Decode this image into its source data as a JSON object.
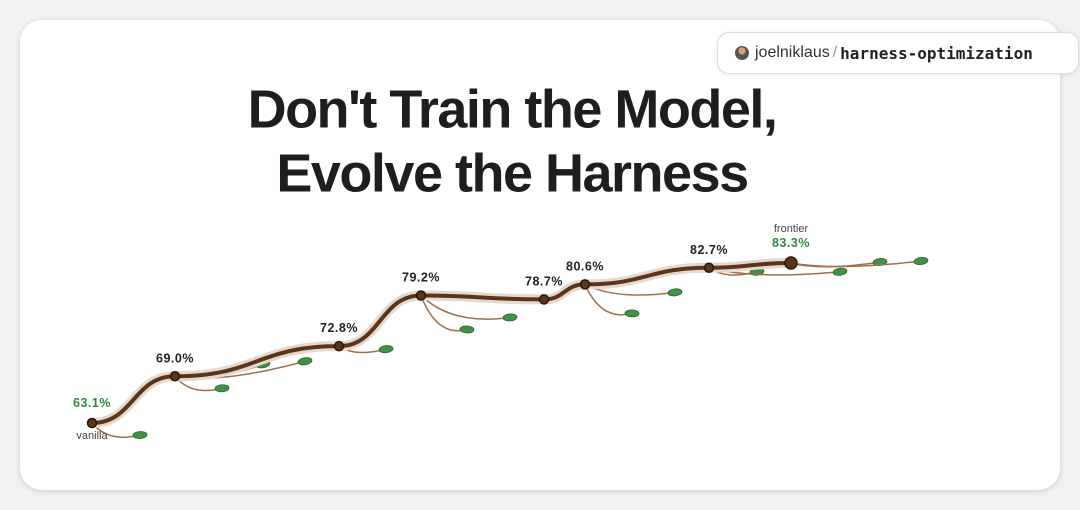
{
  "badge": {
    "user": "joelniklaus",
    "separator": "/",
    "repo": "harness-optimization"
  },
  "chart_data": {
    "type": "line",
    "title": [
      "Don't Train the Model,",
      "Evolve the Harness"
    ],
    "categories": [
      null,
      null,
      null,
      null,
      null,
      null,
      null,
      null
    ],
    "values": [
      63.1,
      69.0,
      72.8,
      79.2,
      78.7,
      80.6,
      82.7,
      83.3
    ],
    "value_labels": [
      "63.1%",
      "69.0%",
      "72.8%",
      "79.2%",
      "78.7%",
      "80.6%",
      "82.7%",
      "83.3%"
    ],
    "annotations": [
      "vanilla",
      "frontier"
    ],
    "color": "#5a3519",
    "highlight_color": "#2e8b3a",
    "leaf_color": "#3f9247"
  }
}
